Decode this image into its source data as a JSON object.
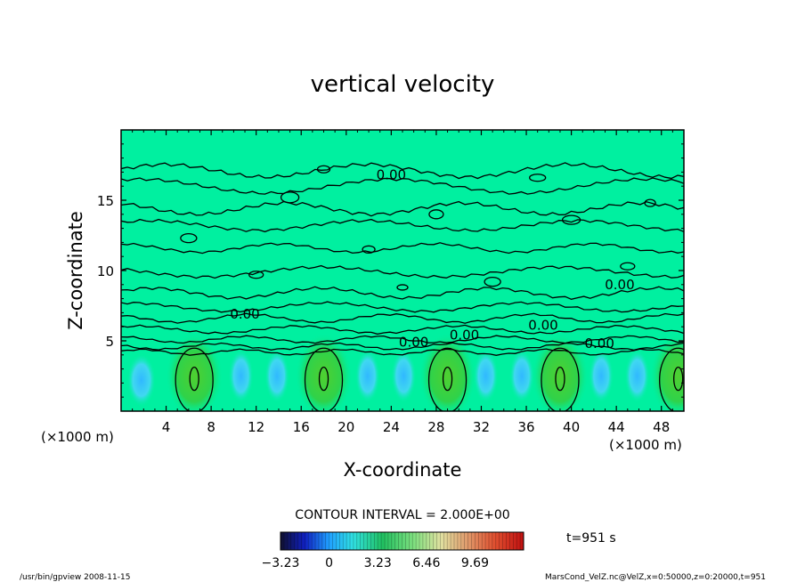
{
  "chart_data": {
    "type": "heatmap",
    "title": "vertical velocity",
    "xlabel": "X-coordinate",
    "ylabel": "Z-coordinate",
    "x_unit": "(×1000 m)",
    "y_unit": "(×1000 m)",
    "xlim": [
      0,
      50
    ],
    "ylim": [
      0,
      20
    ],
    "x_ticks": [
      "4",
      "8",
      "12",
      "16",
      "20",
      "24",
      "28",
      "32",
      "36",
      "40",
      "44",
      "48"
    ],
    "y_ticks": [
      "5",
      "10",
      "15"
    ],
    "contour_interval_label": "CONTOUR INTERVAL = 2.000E+00",
    "contour_labels": [
      "0.00",
      "0.00",
      "0.00",
      "0.00",
      "0.00",
      "0.00",
      "0.00"
    ],
    "colorbar": {
      "min": -3.23,
      "max": 12.92,
      "tick_labels": [
        "-3.23",
        "0",
        "3.23",
        "6.46",
        "9.69"
      ],
      "tick_values": [
        -3.23,
        0,
        3.23,
        6.46,
        9.69
      ]
    },
    "updraft_centers_x": [
      6.5,
      18,
      29,
      39,
      49.5
    ],
    "updraft_peak_z": 2.5,
    "time_label": "t=951 s",
    "footer_left": "/usr/bin/gpview   2008-11-15",
    "footer_right": "MarsCond_VelZ.nc@VelZ,x=0:50000,z=0:20000,t=951",
    "colors": {
      "background_field": "#00f0a0",
      "updraft": "#2fd24a",
      "downdraft": "#40c8ff",
      "contour": "#000000"
    }
  }
}
